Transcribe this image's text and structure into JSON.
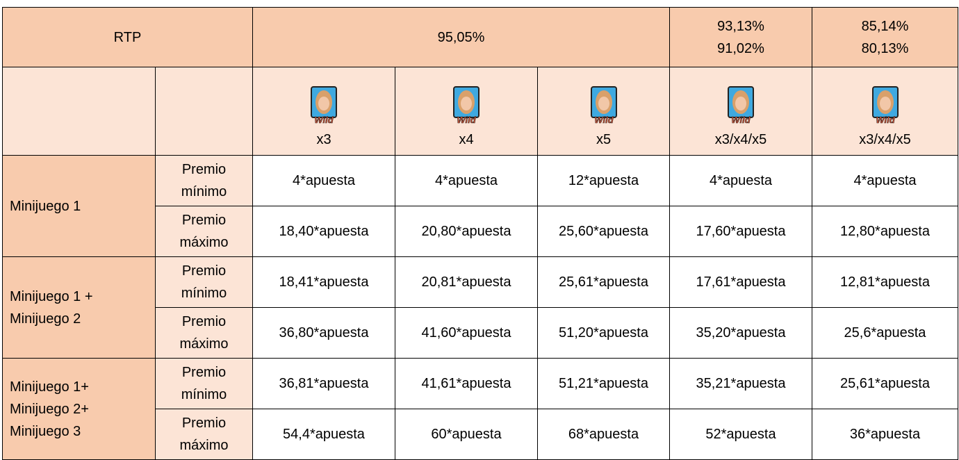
{
  "header": {
    "label": "RTP",
    "rtp": [
      [
        "95,05%"
      ],
      [
        "93,13%",
        "91,02%"
      ],
      [
        "85,14%",
        "80,13%"
      ]
    ]
  },
  "symbols": {
    "icon_label": "Wild",
    "counts": [
      "x3",
      "x4",
      "x5",
      "x3/x4/x5",
      "x3/x4/x5"
    ]
  },
  "rows": [
    {
      "group": [
        "Minijuego 1"
      ],
      "items": [
        {
          "label": [
            "Premio",
            "mínimo"
          ],
          "values": [
            "4*apuesta",
            "4*apuesta",
            "12*apuesta",
            "4*apuesta",
            "4*apuesta"
          ]
        },
        {
          "label": [
            "Premio",
            "máximo"
          ],
          "values": [
            "18,40*apuesta",
            "20,80*apuesta",
            "25,60*apuesta",
            "17,60*apuesta",
            "12,80*apuesta"
          ]
        }
      ]
    },
    {
      "group": [
        "Minijuego 1 +",
        "Minijuego 2"
      ],
      "items": [
        {
          "label": [
            "Premio",
            "mínimo"
          ],
          "values": [
            "18,41*apuesta",
            "20,81*apuesta",
            "25,61*apuesta",
            "17,61*apuesta",
            "12,81*apuesta"
          ]
        },
        {
          "label": [
            "Premio",
            "máximo"
          ],
          "values": [
            "36,80*apuesta",
            "41,60*apuesta",
            "51,20*apuesta",
            "35,20*apuesta",
            "25,6*apuesta"
          ]
        }
      ]
    },
    {
      "group": [
        "Minijuego 1+",
        "Minijuego 2+",
        "Minijuego 3"
      ],
      "items": [
        {
          "label": [
            "Premio",
            "mínimo"
          ],
          "values": [
            "36,81*apuesta",
            "41,61*apuesta",
            "51,21*apuesta",
            "35,21*apuesta",
            "25,61*apuesta"
          ]
        },
        {
          "label": [
            "Premio",
            "máximo"
          ],
          "values": [
            "54,4*apuesta",
            "60*apuesta",
            "68*apuesta",
            "52*apuesta",
            "36*apuesta"
          ]
        }
      ]
    }
  ]
}
